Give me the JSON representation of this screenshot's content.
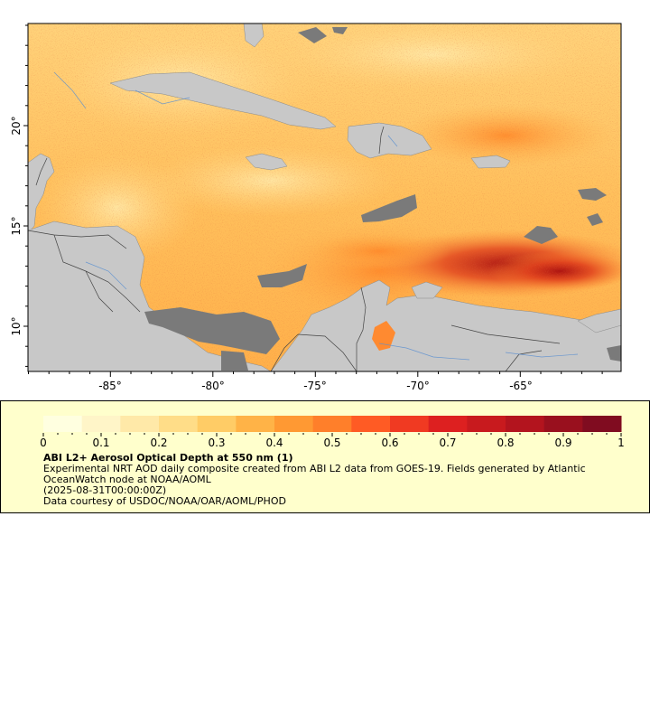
{
  "map": {
    "lat_labels": [
      "20°",
      "15°",
      "10°"
    ],
    "lon_labels": [
      "-85°",
      "-80°",
      "-75°",
      "-70°",
      "-65°"
    ],
    "colors": {
      "land": "#c8c8c8",
      "no_data": "#7a7a7a",
      "rivers": "#5b8fd0",
      "borders": "#555555",
      "aod_low": "#ffdd88",
      "aod_mid": "#ff9933",
      "aod_high": "#cc2222"
    }
  },
  "colorbar": {
    "tick_labels": [
      "0",
      "0.1",
      "0.2",
      "0.3",
      "0.4",
      "0.5",
      "0.6",
      "0.7",
      "0.8",
      "0.9",
      "1"
    ],
    "colors": [
      "#ffffe0",
      "#fff5c8",
      "#ffe9a8",
      "#ffdd88",
      "#ffcc66",
      "#ffb347",
      "#ff9933",
      "#ff7f2a",
      "#ff5b24",
      "#f03a22",
      "#dd2020",
      "#c81a1e",
      "#b3141e",
      "#99101e",
      "#800c20"
    ]
  },
  "legend": {
    "title": "ABI L2+ Aerosol Optical Depth at 550 nm (1)",
    "description": "Experimental NRT AOD daily composite created from ABI L2 data from GOES-19. Fields generated by Atlantic OceanWatch node at NOAA/AOML",
    "time": "(2025-08-31T00:00:00Z)",
    "credit": "Data courtesy of USDOC/NOAA/OAR/AOML/PHOD"
  }
}
